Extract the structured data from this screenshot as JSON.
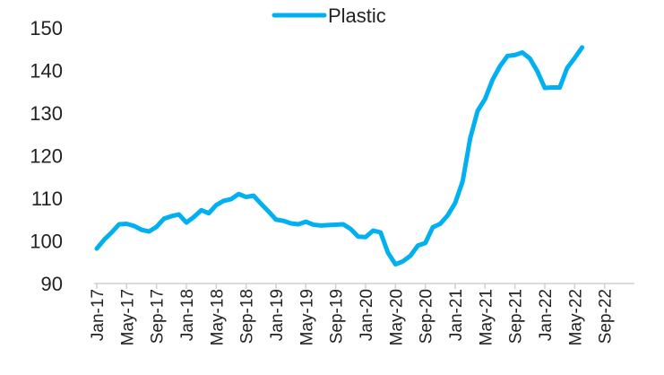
{
  "chart_data": {
    "type": "line",
    "title": "",
    "xlabel": "",
    "ylabel": "",
    "ylim": [
      90,
      150
    ],
    "y_ticks": [
      "90",
      "100",
      "110",
      "120",
      "130",
      "140",
      "150"
    ],
    "x_tick_labels": [
      "Jan-17",
      "May-17",
      "Sep-17",
      "Jan-18",
      "May-18",
      "Sep-18",
      "Jan-19",
      "May-19",
      "Sep-19",
      "Jan-20",
      "May-20",
      "Sep-20",
      "Jan-21",
      "May-21",
      "Sep-21",
      "Jan-22",
      "May-22",
      "Sep-22"
    ],
    "legend_position": "top",
    "grid": false,
    "series": [
      {
        "name": "Plastic",
        "color": "#00B0F0",
        "x": [
          "Jan-17",
          "Feb-17",
          "Mar-17",
          "Apr-17",
          "May-17",
          "Jun-17",
          "Jul-17",
          "Aug-17",
          "Sep-17",
          "Oct-17",
          "Nov-17",
          "Dec-17",
          "Jan-18",
          "Feb-18",
          "Mar-18",
          "Apr-18",
          "May-18",
          "Jun-18",
          "Jul-18",
          "Aug-18",
          "Sep-18",
          "Oct-18",
          "Nov-18",
          "Dec-18",
          "Jan-19",
          "Feb-19",
          "Mar-19",
          "Apr-19",
          "May-19",
          "Jun-19",
          "Jul-19",
          "Aug-19",
          "Sep-19",
          "Oct-19",
          "Nov-19",
          "Dec-19",
          "Jan-20",
          "Feb-20",
          "Mar-20",
          "Apr-20",
          "May-20",
          "Jun-20",
          "Jul-20",
          "Aug-20",
          "Sep-20",
          "Oct-20",
          "Nov-20",
          "Dec-20",
          "Jan-21",
          "Feb-21",
          "Mar-21",
          "Apr-21",
          "May-21",
          "Jun-21",
          "Jul-21",
          "Aug-21",
          "Sep-21",
          "Oct-21",
          "Nov-21",
          "Dec-21",
          "Jan-22",
          "Feb-22",
          "Mar-22",
          "Apr-22",
          "May-22",
          "Jun-22"
        ],
        "values": [
          98.2,
          100.3,
          102.0,
          103.9,
          104.0,
          103.5,
          102.6,
          102.2,
          103.3,
          105.2,
          105.8,
          106.2,
          104.3,
          105.6,
          107.2,
          106.5,
          108.4,
          109.4,
          109.8,
          111.0,
          110.3,
          110.6,
          108.7,
          106.9,
          105.0,
          104.7,
          104.1,
          103.9,
          104.5,
          103.8,
          103.6,
          103.7,
          103.8,
          103.9,
          102.8,
          101.0,
          100.9,
          102.4,
          102.0,
          97.2,
          94.5,
          95.2,
          96.5,
          98.9,
          99.5,
          103.2,
          104.0,
          106.0,
          108.9,
          114.0,
          124.0,
          130.5,
          133.3,
          137.8,
          141.0,
          143.4,
          143.6,
          144.2,
          142.8,
          139.8,
          135.9,
          136.0,
          136.0,
          140.6,
          142.9,
          145.4
        ]
      }
    ]
  }
}
